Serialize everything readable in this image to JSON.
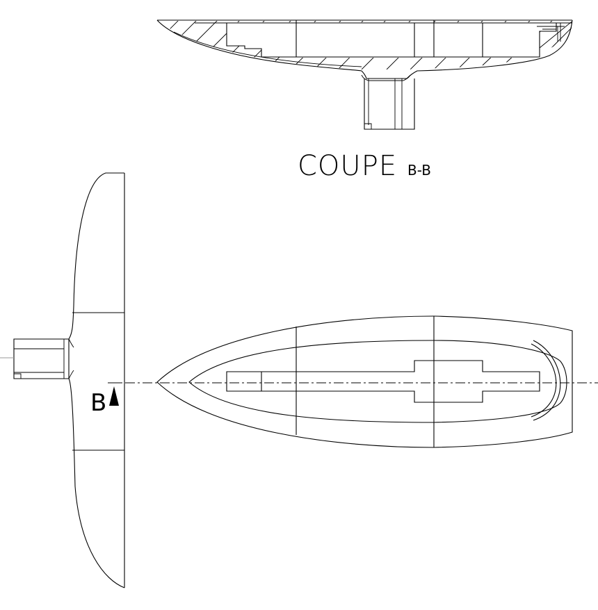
{
  "section_view": {
    "title": "COUPE",
    "suffix": "B-B"
  },
  "section_marker": {
    "letter": "B"
  },
  "colors": {
    "line": "#000000",
    "background": "#ffffff"
  }
}
